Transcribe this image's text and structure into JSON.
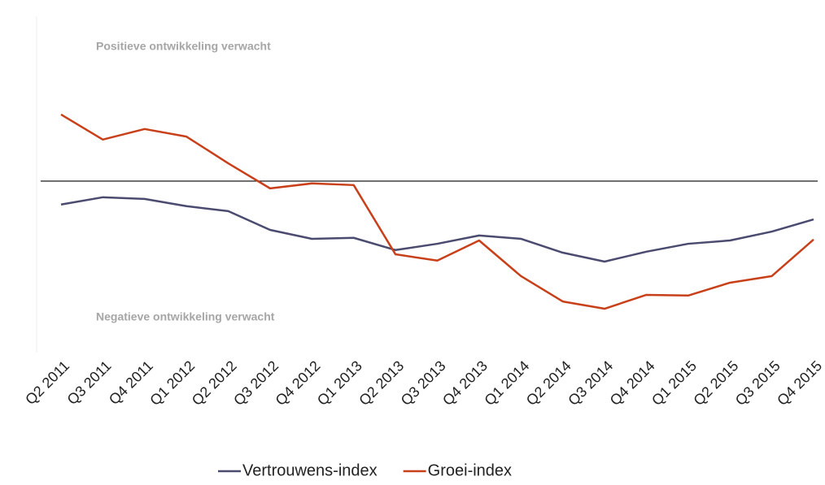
{
  "chart_data": {
    "type": "line",
    "annotations": [
      "Positieve ontwikkeling verwacht",
      "Negatieve ontwikkeling verwacht"
    ],
    "categories": [
      "Q2 2011",
      "Q3 2011",
      "Q4 2011",
      "Q1 2012",
      "Q2 2012",
      "Q3 2012",
      "Q4 2012",
      "Q1 2013",
      "Q2 2013",
      "Q3 2013",
      "Q4 2013",
      "Q1 2014",
      "Q2 2014",
      "Q3 2014",
      "Q4 2014",
      "Q1 2015",
      "Q2 2015",
      "Q3 2015",
      "Q4 2015"
    ],
    "series": [
      {
        "name": "Vertrouwens-index",
        "color": "#4b4b70",
        "values": [
          -7.1,
          -4.9,
          -5.4,
          -7.6,
          -9.1,
          -14.8,
          -17.5,
          -17.2,
          -20.9,
          -19,
          -16.5,
          -17.5,
          -21.7,
          -24.4,
          -21.4,
          -19,
          -18,
          -15.3,
          -11.6
        ]
      },
      {
        "name": "Groei-index",
        "color": "#c8401a",
        "values": [
          20.2,
          12.6,
          15.8,
          13.5,
          5.4,
          -2.2,
          -0.7,
          -1.2,
          -22.2,
          -24.1,
          -18,
          -28.8,
          -36.5,
          -38.7,
          -34.5,
          -34.7,
          -30.8,
          -28.8,
          -17.7
        ]
      }
    ],
    "ylim": [
      -52,
      50
    ],
    "reference_line": 0,
    "legend": "bottom"
  }
}
